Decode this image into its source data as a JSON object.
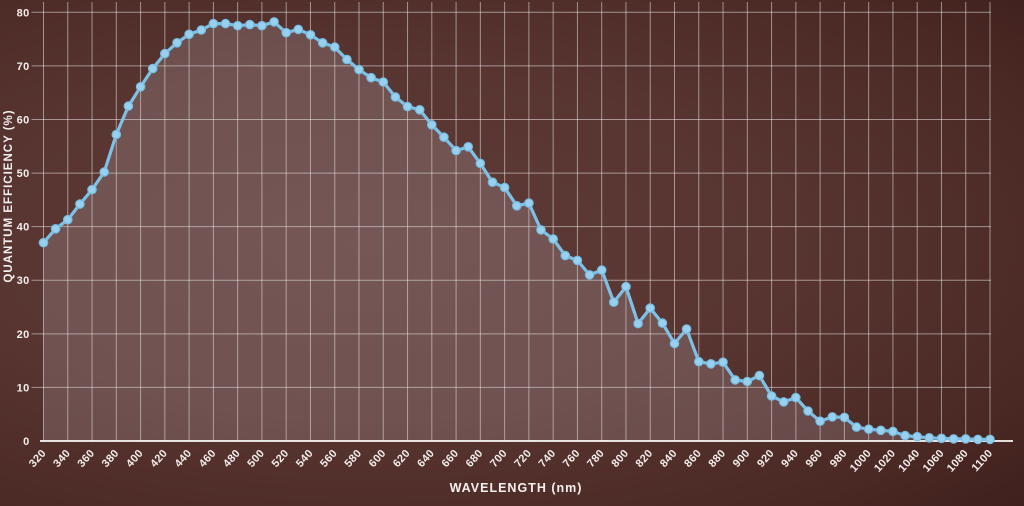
{
  "axes": {
    "x_title": "WAVELENGTH (nm)",
    "y_title": "QUANTUM EFFICIENCY (%)"
  },
  "chart_data": {
    "type": "area",
    "title": "",
    "xlabel": "WAVELENGTH (nm)",
    "ylabel": "QUANTUM EFFICIENCY (%)",
    "xlim": [
      320,
      1100
    ],
    "ylim": [
      0,
      80
    ],
    "grid": true,
    "legend": "none",
    "x_ticks": [
      320,
      340,
      360,
      380,
      400,
      420,
      440,
      460,
      480,
      500,
      520,
      540,
      560,
      580,
      600,
      620,
      640,
      660,
      680,
      700,
      720,
      740,
      760,
      780,
      800,
      820,
      840,
      860,
      880,
      900,
      920,
      940,
      960,
      980,
      1000,
      1020,
      1040,
      1060,
      1080,
      1100
    ],
    "y_ticks": [
      0,
      10,
      20,
      30,
      40,
      50,
      60,
      70,
      80
    ],
    "series_name": "Quantum Efficiency",
    "x": [
      320,
      330,
      340,
      350,
      360,
      370,
      380,
      390,
      400,
      410,
      420,
      430,
      440,
      450,
      460,
      470,
      480,
      490,
      500,
      510,
      520,
      530,
      540,
      550,
      560,
      570,
      580,
      590,
      600,
      610,
      620,
      630,
      640,
      650,
      660,
      670,
      680,
      690,
      700,
      710,
      720,
      730,
      740,
      750,
      760,
      770,
      780,
      790,
      800,
      810,
      820,
      830,
      840,
      850,
      860,
      870,
      880,
      890,
      900,
      910,
      920,
      930,
      940,
      950,
      960,
      970,
      980,
      990,
      1000,
      1010,
      1020,
      1030,
      1040,
      1050,
      1060,
      1070,
      1080,
      1090,
      1100
    ],
    "values": [
      37.0,
      39.6,
      41.3,
      44.2,
      46.9,
      50.2,
      57.2,
      62.5,
      66.1,
      69.5,
      72.3,
      74.3,
      75.9,
      76.7,
      77.9,
      77.9,
      77.5,
      77.7,
      77.5,
      78.2,
      76.2,
      76.8,
      75.8,
      74.3,
      73.5,
      71.2,
      69.3,
      67.8,
      67.0,
      64.2,
      62.4,
      61.8,
      59.0,
      56.7,
      54.2,
      54.9,
      51.8,
      48.3,
      47.3,
      43.9,
      44.4,
      39.4,
      37.7,
      34.6,
      33.7,
      31.0,
      31.9,
      25.9,
      28.8,
      21.9,
      24.8,
      22.0,
      18.2,
      20.9,
      14.8,
      14.4,
      14.7,
      11.4,
      11.1,
      12.2,
      8.4,
      7.3,
      8.1,
      5.6,
      3.7,
      4.5,
      4.4,
      2.6,
      2.2,
      2.0,
      1.8,
      1.0,
      0.8,
      0.6,
      0.5,
      0.4,
      0.4,
      0.3,
      0.3
    ],
    "colors": {
      "line": "#7ec1e6",
      "point_fill": "#98d0ee",
      "point_stroke": "#76bce2",
      "area_fill": "rgba(224,218,228,0.18)",
      "grid": "rgba(255,255,255,0.48)",
      "axis": "rgba(255,255,255,0.85)",
      "label": "#f3eeec",
      "background_center": "#5e3b37",
      "background_edge": "#241010"
    }
  }
}
